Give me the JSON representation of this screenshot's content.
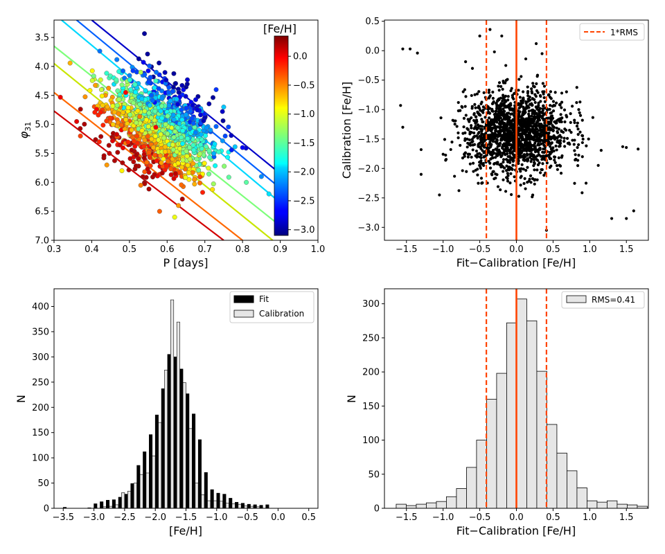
{
  "chart_data": [
    {
      "type": "scatter",
      "title": "",
      "xlabel": "P [days]",
      "ylabel": "φ31",
      "xlim": [
        0.3,
        1.0
      ],
      "ylim": [
        7.0,
        3.2
      ],
      "y_inverted": true,
      "xticks": [
        "0.3",
        "0.4",
        "0.5",
        "0.6",
        "0.7",
        "0.8",
        "0.9",
        "1.0"
      ],
      "yticks": [
        "3.5",
        "4.0",
        "4.5",
        "5.0",
        "5.5",
        "6.0",
        "6.5",
        "7.0"
      ],
      "colorbar": {
        "label": "[Fe/H]",
        "range": [
          -3.1,
          0.35
        ],
        "colormap": "jet",
        "ticks": [
          "0.0",
          "−0.5",
          "−1.0",
          "−1.5",
          "−2.0",
          "−2.5",
          "−3.0"
        ]
      },
      "fit_lines": [
        {
          "feh": -3.0,
          "color": "#0000c8",
          "points": [
            [
              0.4,
              3.2
            ],
            [
              0.9,
              5.85
            ]
          ]
        },
        {
          "feh": -2.5,
          "color": "#0060ff",
          "points": [
            [
              0.36,
              3.2
            ],
            [
              0.9,
              6.1
            ]
          ]
        },
        {
          "feh": -2.0,
          "color": "#00d8ff",
          "points": [
            [
              0.32,
              3.2
            ],
            [
              0.9,
              6.35
            ]
          ]
        },
        {
          "feh": -1.5,
          "color": "#7dff7a",
          "points": [
            [
              0.3,
              3.65
            ],
            [
              0.9,
              6.75
            ]
          ]
        },
        {
          "feh": -1.0,
          "color": "#c8e600",
          "points": [
            [
              0.3,
              3.95
            ],
            [
              0.88,
              7.0
            ]
          ]
        },
        {
          "feh": -0.5,
          "color": "#ff6800",
          "points": [
            [
              0.3,
              4.45
            ],
            [
              0.8,
              7.0
            ]
          ]
        },
        {
          "feh": 0.0,
          "color": "#d20000",
          "points": [
            [
              0.3,
              4.77
            ],
            [
              0.75,
              7.0
            ]
          ]
        }
      ],
      "scatter_cloud": {
        "center_p": 0.58,
        "center_phi": 5.05,
        "sd_p": 0.07,
        "sd_phi": 0.38,
        "count": 1400
      },
      "outliers": [
        {
          "x": 0.36,
          "y": 4.95,
          "feh": 0.0
        },
        {
          "x": 0.37,
          "y": 5.2,
          "feh": -0.3
        },
        {
          "x": 0.42,
          "y": 5.3,
          "feh": -0.2
        },
        {
          "x": 0.44,
          "y": 5.7,
          "feh": -0.6
        },
        {
          "x": 0.48,
          "y": 5.8,
          "feh": -0.9
        },
        {
          "x": 0.53,
          "y": 6.05,
          "feh": -0.5
        },
        {
          "x": 0.58,
          "y": 6.5,
          "feh": -0.4
        },
        {
          "x": 0.62,
          "y": 6.6,
          "feh": -1.0
        },
        {
          "x": 0.63,
          "y": 6.4,
          "feh": -0.6
        },
        {
          "x": 0.49,
          "y": 4.45,
          "feh": -0.1
        },
        {
          "x": 0.53,
          "y": 4.1,
          "feh": -1.2
        },
        {
          "x": 0.57,
          "y": 4.25,
          "feh": -1.6
        },
        {
          "x": 0.75,
          "y": 4.7,
          "feh": -2.0
        },
        {
          "x": 0.73,
          "y": 4.4,
          "feh": -2.5
        },
        {
          "x": 0.8,
          "y": 5.4,
          "feh": -2.7
        },
        {
          "x": 0.85,
          "y": 5.9,
          "feh": -2.2
        },
        {
          "x": 0.87,
          "y": 6.2,
          "feh": -1.9
        },
        {
          "x": 0.9,
          "y": 6.6,
          "feh": -1.6
        },
        {
          "x": 0.81,
          "y": 6.0,
          "feh": -1.5
        },
        {
          "x": 0.68,
          "y": 4.75,
          "feh": -2.8
        },
        {
          "x": 0.57,
          "y": 5.05,
          "feh": -0.05
        },
        {
          "x": 0.52,
          "y": 5.2,
          "feh": -0.3
        }
      ]
    },
    {
      "type": "scatter",
      "title": "",
      "xlabel": "Fit−Calibration [Fe/H]",
      "ylabel": "Calibration [Fe/H]",
      "xlim": [
        -1.8,
        1.8
      ],
      "ylim": [
        -3.22,
        0.52
      ],
      "xticks": [
        "−1.5",
        "−1.0",
        "−0.5",
        "0.0",
        "0.5",
        "1.0",
        "1.5"
      ],
      "yticks": [
        "0.5",
        "0.0",
        "−0.5",
        "−1.0",
        "−1.5",
        "−2.0",
        "−2.5",
        "−3.0"
      ],
      "legend": {
        "entries": [
          "1*RMS"
        ],
        "placement": "top-right"
      },
      "vlines": [
        {
          "x": -0.41,
          "style": "dashed"
        },
        {
          "x": 0.0,
          "style": "solid"
        },
        {
          "x": 0.41,
          "style": "dashed"
        }
      ],
      "scatter_cloud": {
        "center_x": 0.0,
        "center_y": -1.4,
        "sd_x": 0.35,
        "sd_y": 0.35,
        "count": 1700
      },
      "outliers": [
        {
          "x": -1.55,
          "y": 0.03
        },
        {
          "x": -1.45,
          "y": 0.03
        },
        {
          "x": -1.35,
          "y": -0.04
        },
        {
          "x": -0.36,
          "y": 0.36
        },
        {
          "x": -0.5,
          "y": 0.25
        },
        {
          "x": -0.2,
          "y": 0.25
        },
        {
          "x": 0.27,
          "y": 0.12
        },
        {
          "x": 0.35,
          "y": -0.05
        },
        {
          "x": -0.3,
          "y": -0.02
        },
        {
          "x": 1.5,
          "y": -2.85
        },
        {
          "x": 1.6,
          "y": -2.72
        },
        {
          "x": 1.3,
          "y": -2.85
        },
        {
          "x": 1.66,
          "y": -1.67
        },
        {
          "x": 1.45,
          "y": -1.63
        },
        {
          "x": -1.58,
          "y": -0.93
        },
        {
          "x": -1.55,
          "y": -1.3
        },
        {
          "x": -1.3,
          "y": -1.68
        },
        {
          "x": -1.3,
          "y": -2.1
        },
        {
          "x": -1.05,
          "y": -2.45
        },
        {
          "x": 0.41,
          "y": -3.05
        },
        {
          "x": 0.95,
          "y": -2.25
        },
        {
          "x": 0.9,
          "y": -1.8
        },
        {
          "x": -0.6,
          "y": -0.3
        },
        {
          "x": 0.85,
          "y": -1.0
        }
      ]
    },
    {
      "type": "bar",
      "title": "",
      "xlabel": "[Fe/H]",
      "ylabel": "N",
      "xlim": [
        -3.65,
        0.65
      ],
      "ylim": [
        0,
        435
      ],
      "xticks": [
        "−3.5",
        "−3.0",
        "−2.5",
        "−2.0",
        "−1.5",
        "−1.0",
        "−0.5",
        "0.0",
        "0.5"
      ],
      "yticks": [
        "0",
        "50",
        "100",
        "150",
        "200",
        "250",
        "300",
        "350",
        "400"
      ],
      "legend": {
        "entries": [
          "Fit",
          "Calibration"
        ],
        "placement": "top-right"
      },
      "bin_start": -3.6,
      "bin_width": 0.1,
      "series": [
        {
          "name": "Fit",
          "values": [
            0,
            2,
            0,
            0,
            0,
            1,
            9,
            13,
            16,
            17,
            22,
            28,
            49,
            85,
            112,
            146,
            185,
            237,
            305,
            300,
            276,
            227,
            187,
            136,
            71,
            37,
            30,
            28,
            20,
            12,
            10,
            8,
            7,
            6,
            7
          ]
        },
        {
          "name": "Calibration",
          "values": [
            0,
            0,
            0,
            0,
            0,
            0,
            0,
            3,
            4,
            7,
            31,
            34,
            50,
            67,
            70,
            104,
            170,
            274,
            413,
            369,
            249,
            158,
            50,
            27,
            15,
            15,
            14,
            10,
            9,
            8,
            5,
            4,
            3,
            0,
            0
          ]
        }
      ]
    },
    {
      "type": "bar",
      "title": "",
      "xlabel": "Fit−Calibration [Fe/H]",
      "ylabel": "N",
      "xlim": [
        -1.8,
        1.8
      ],
      "ylim": [
        0,
        322
      ],
      "xticks": [
        "−1.5",
        "−1.0",
        "−0.5",
        "0.0",
        "0.5",
        "1.0",
        "1.5"
      ],
      "yticks": [
        "0",
        "50",
        "100",
        "150",
        "200",
        "250",
        "300"
      ],
      "legend": {
        "entries": [
          "RMS=0.41"
        ],
        "placement": "top-right"
      },
      "bin_start": -1.64,
      "bin_width": 0.137,
      "values": [
        6,
        4,
        6,
        8,
        10,
        17,
        29,
        60,
        100,
        160,
        198,
        272,
        307,
        275,
        201,
        123,
        81,
        55,
        30,
        11,
        9,
        11,
        6,
        5,
        3
      ],
      "vlines": [
        {
          "x": -0.41,
          "style": "dashed"
        },
        {
          "x": 0.0,
          "style": "solid"
        },
        {
          "x": 0.41,
          "style": "dashed"
        }
      ]
    }
  ]
}
